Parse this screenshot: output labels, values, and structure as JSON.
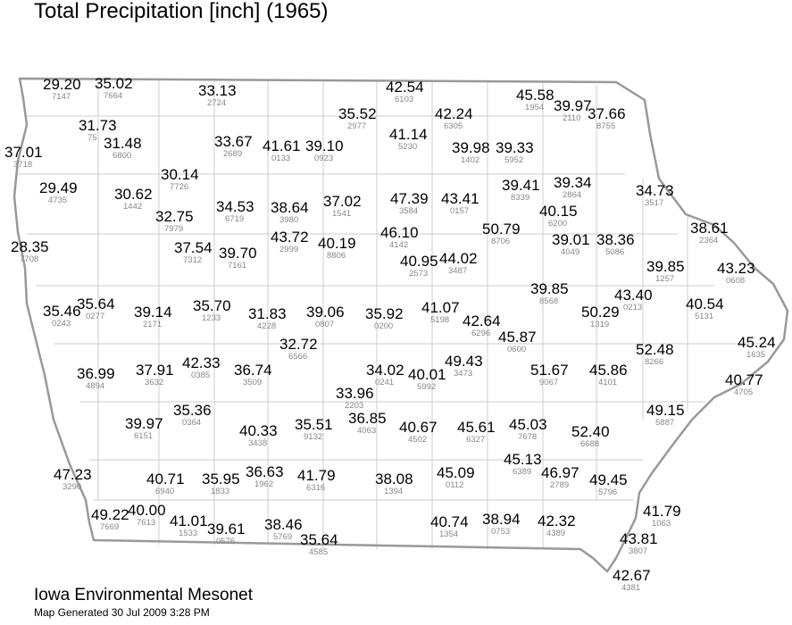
{
  "title": "Total Precipitation [inch] (1965)",
  "stations": [
    {
      "value": "29.20",
      "id": "7147"
    },
    {
      "value": "35.02",
      "id": "7664"
    },
    {
      "value": "33.13",
      "id": "2724"
    },
    {
      "value": "42.54",
      "id": "6103"
    },
    {
      "value": "45.58",
      "id": "1954"
    },
    {
      "value": "39.97",
      "id": "2110"
    },
    {
      "value": "37.66",
      "id": "8755"
    },
    {
      "value": "35.52",
      "id": "2977"
    },
    {
      "value": "42.24",
      "id": "6305"
    },
    {
      "value": "31.73",
      "id": "75"
    },
    {
      "value": "31.48",
      "id": "6800"
    },
    {
      "value": "33.67",
      "id": "2689"
    },
    {
      "value": "41.61",
      "id": "0133"
    },
    {
      "value": "39.10",
      "id": "0923"
    },
    {
      "value": "41.14",
      "id": "5230"
    },
    {
      "value": "39.98",
      "id": "1402"
    },
    {
      "value": "39.33",
      "id": "5952"
    },
    {
      "value": "37.01",
      "id": "3718"
    },
    {
      "value": "30.14",
      "id": "7726"
    },
    {
      "value": "29.49",
      "id": "4735"
    },
    {
      "value": "39.41",
      "id": "8339"
    },
    {
      "value": "39.34",
      "id": "2864"
    },
    {
      "value": "34.73",
      "id": "3517"
    },
    {
      "value": "30.62",
      "id": "1442"
    },
    {
      "value": "34.53",
      "id": "6719"
    },
    {
      "value": "38.64",
      "id": "3980"
    },
    {
      "value": "37.02",
      "id": "1541"
    },
    {
      "value": "47.39",
      "id": "3584"
    },
    {
      "value": "43.41",
      "id": "0157"
    },
    {
      "value": "32.75",
      "id": "7979"
    },
    {
      "value": "40.15",
      "id": "6200"
    },
    {
      "value": "38.61",
      "id": "2364"
    },
    {
      "value": "50.79",
      "id": "8706"
    },
    {
      "value": "28.35",
      "id": "7708"
    },
    {
      "value": "37.54",
      "id": "7312"
    },
    {
      "value": "39.70",
      "id": "7161"
    },
    {
      "value": "43.72",
      "id": "2999"
    },
    {
      "value": "40.19",
      "id": "8806"
    },
    {
      "value": "46.10",
      "id": "4142"
    },
    {
      "value": "39.01",
      "id": "4049"
    },
    {
      "value": "38.36",
      "id": "5086"
    },
    {
      "value": "40.95",
      "id": "2573"
    },
    {
      "value": "44.02",
      "id": "3487"
    },
    {
      "value": "39.85",
      "id": "1257"
    },
    {
      "value": "43.23",
      "id": "0608"
    },
    {
      "value": "39.85",
      "id": "8568"
    },
    {
      "value": "43.40",
      "id": "0213"
    },
    {
      "value": "35.64",
      "id": "0277"
    },
    {
      "value": "35.46",
      "id": "0243"
    },
    {
      "value": "39.14",
      "id": "2171"
    },
    {
      "value": "35.70",
      "id": "1233"
    },
    {
      "value": "31.83",
      "id": "4228"
    },
    {
      "value": "39.06",
      "id": "0807"
    },
    {
      "value": "35.92",
      "id": "0200"
    },
    {
      "value": "41.07",
      "id": "5198"
    },
    {
      "value": "50.29",
      "id": "1319"
    },
    {
      "value": "40.54",
      "id": "5131"
    },
    {
      "value": "42.64",
      "id": "6296"
    },
    {
      "value": "45.87",
      "id": "0600"
    },
    {
      "value": "32.72",
      "id": "6566"
    },
    {
      "value": "52.48",
      "id": "8266"
    },
    {
      "value": "45.24",
      "id": "1635"
    },
    {
      "value": "36.99",
      "id": "4894"
    },
    {
      "value": "37.91",
      "id": "3632"
    },
    {
      "value": "42.33",
      "id": "0385"
    },
    {
      "value": "36.74",
      "id": "3509"
    },
    {
      "value": "34.02",
      "id": "0241"
    },
    {
      "value": "40.01",
      "id": "5992"
    },
    {
      "value": "49.43",
      "id": "3473"
    },
    {
      "value": "51.67",
      "id": "9067"
    },
    {
      "value": "45.86",
      "id": "4101"
    },
    {
      "value": "40.77",
      "id": "4705"
    },
    {
      "value": "33.96",
      "id": "2203"
    },
    {
      "value": "35.36",
      "id": "0364"
    },
    {
      "value": "49.15",
      "id": "5887"
    },
    {
      "value": "39.97",
      "id": "6151"
    },
    {
      "value": "40.33",
      "id": "3438"
    },
    {
      "value": "35.51",
      "id": "9132"
    },
    {
      "value": "36.85",
      "id": "4063"
    },
    {
      "value": "40.67",
      "id": "4502"
    },
    {
      "value": "45.61",
      "id": "6327"
    },
    {
      "value": "45.03",
      "id": "7678"
    },
    {
      "value": "52.40",
      "id": "6688"
    },
    {
      "value": "45.13",
      "id": "6389"
    },
    {
      "value": "47.23",
      "id": "3290"
    },
    {
      "value": "40.71",
      "id": "6940"
    },
    {
      "value": "35.95",
      "id": "1833"
    },
    {
      "value": "36.63",
      "id": "1962"
    },
    {
      "value": "41.79",
      "id": "6316"
    },
    {
      "value": "38.08",
      "id": "1394"
    },
    {
      "value": "45.09",
      "id": "0112"
    },
    {
      "value": "46.97",
      "id": "2789"
    },
    {
      "value": "49.45",
      "id": "5796"
    },
    {
      "value": "49.22",
      "id": "7669"
    },
    {
      "value": "40.00",
      "id": "7613"
    },
    {
      "value": "41.01",
      "id": "1533"
    },
    {
      "value": "39.61",
      "id": "0576"
    },
    {
      "value": "38.46",
      "id": "5769"
    },
    {
      "value": "35.64",
      "id": "4585"
    },
    {
      "value": "40.74",
      "id": "1354"
    },
    {
      "value": "38.94",
      "id": "0753"
    },
    {
      "value": "42.32",
      "id": "4389"
    },
    {
      "value": "41.79",
      "id": "1063"
    },
    {
      "value": "43.81",
      "id": "3807"
    },
    {
      "value": "42.67",
      "id": "4381"
    }
  ],
  "footer": {
    "organization": "Iowa Environmental Mesonet",
    "generated": "Map Generated 30 Jul 2009 3:28 PM"
  }
}
